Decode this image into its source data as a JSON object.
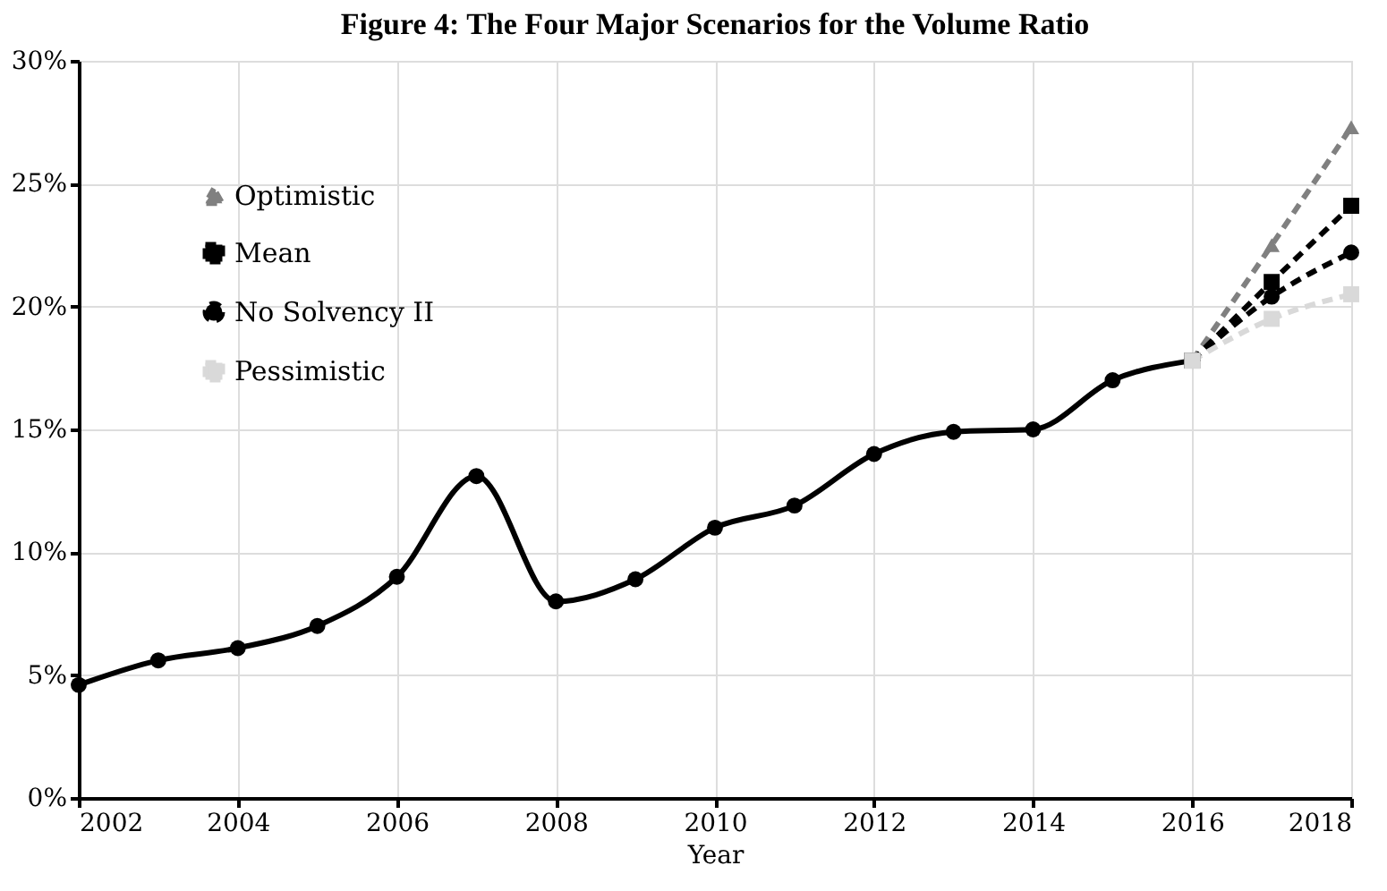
{
  "chart_data": {
    "type": "line",
    "title": "Figure 4: The Four Major Scenarios for the Volume Ratio",
    "xlabel": "Year",
    "xlim": [
      2002,
      2018
    ],
    "xticks": [
      2002,
      2004,
      2006,
      2008,
      2010,
      2012,
      2014,
      2016,
      2018
    ],
    "ylim": [
      0,
      30
    ],
    "yticks": [
      {
        "value": 0,
        "label": "0%"
      },
      {
        "value": 5,
        "label": "5%"
      },
      {
        "value": 10,
        "label": "10%"
      },
      {
        "value": 15,
        "label": "15%"
      },
      {
        "value": 20,
        "label": "20%"
      },
      {
        "value": 25,
        "label": "25%"
      },
      {
        "value": 30,
        "label": "30%"
      }
    ],
    "grid": true,
    "legend": "top left",
    "series": [
      {
        "color": "#000000",
        "marker": "circle",
        "line_style": "solid",
        "x": [
          2002,
          2003,
          2004,
          2005,
          2006,
          2007,
          2008,
          2009,
          2010,
          2011,
          2012,
          2013,
          2014,
          2015,
          2016
        ],
        "values": [
          4.6,
          5.6,
          6.1,
          7.0,
          9.0,
          13.1,
          8.0,
          8.9,
          11.0,
          11.9,
          14.0,
          14.9,
          15.0,
          17.0,
          17.8
        ]
      },
      {
        "name": "Optimistic",
        "color": "#808080",
        "marker": "triangle",
        "line_style": "dashed",
        "x": [
          2016,
          2017,
          2018
        ],
        "values": [
          17.8,
          22.5,
          27.3
        ]
      },
      {
        "name": "Mean",
        "color": "#000000",
        "marker": "square",
        "line_style": "dashed",
        "x": [
          2016,
          2017,
          2018
        ],
        "values": [
          17.8,
          21.0,
          24.1
        ]
      },
      {
        "name": "No Solvency II",
        "color": "#000000",
        "marker": "circle",
        "line_style": "dashed",
        "x": [
          2016,
          2017,
          2018
        ],
        "values": [
          17.8,
          20.4,
          22.2
        ]
      },
      {
        "name": "Pessimistic",
        "color": "#d9d9d9",
        "marker": "square",
        "line_style": "dashed",
        "x": [
          2016,
          2017,
          2018
        ],
        "values": [
          17.8,
          19.5,
          20.5
        ]
      }
    ]
  }
}
